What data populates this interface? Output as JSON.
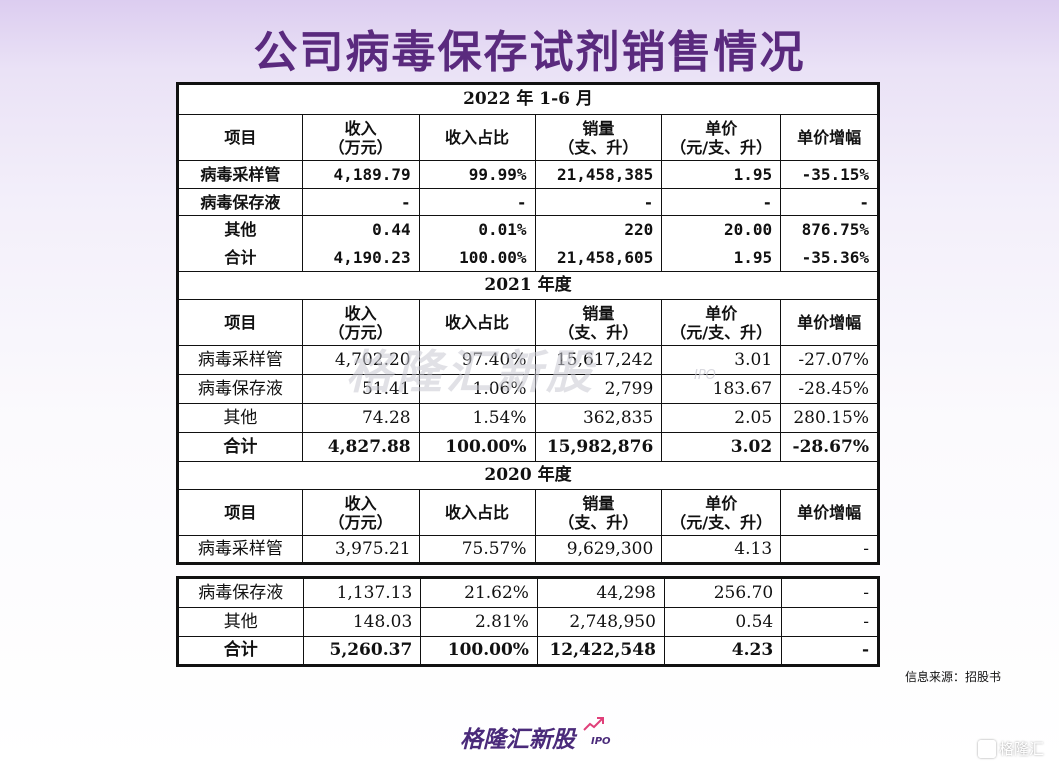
{
  "title": "公司病毒保存试剂销售情况",
  "source": "信息来源：招股书",
  "brand": {
    "name": "格隆汇新股",
    "suffix": "IPO"
  },
  "watermark": {
    "name": "格隆汇新股",
    "suffix": "IPO"
  },
  "corner_logo": "格隆汇",
  "columns": [
    "项目",
    "收入",
    "（万元）",
    "收入占比",
    "销量",
    "（支、升）",
    "单价",
    "（元/支、升）",
    "单价增幅"
  ],
  "sections": [
    {
      "period": "2022 年 1-6 月",
      "rows": [
        {
          "item": "病毒采样管",
          "revenue": "4,189.79",
          "share": "99.99%",
          "volume": "21,458,385",
          "price": "1.95",
          "growth": "-35.15%"
        },
        {
          "item": "病毒保存液",
          "revenue": "-",
          "share": "-",
          "volume": "-",
          "price": "-",
          "growth": "-"
        },
        {
          "item": "其他",
          "revenue": "0.44",
          "share": "0.01%",
          "volume": "220",
          "price": "20.00",
          "growth": "876.75%"
        },
        {
          "item": "合计",
          "revenue": "4,190.23",
          "share": "100.00%",
          "volume": "21,458,605",
          "price": "1.95",
          "growth": "-35.36%"
        }
      ]
    },
    {
      "period": "2021 年度",
      "rows": [
        {
          "item": "病毒采样管",
          "revenue": "4,702.20",
          "share": "97.40%",
          "volume": "15,617,242",
          "price": "3.01",
          "growth": "-27.07%"
        },
        {
          "item": "病毒保存液",
          "revenue": "51.41",
          "share": "1.06%",
          "volume": "2,799",
          "price": "183.67",
          "growth": "-28.45%"
        },
        {
          "item": "其他",
          "revenue": "74.28",
          "share": "1.54%",
          "volume": "362,835",
          "price": "2.05",
          "growth": "280.15%"
        },
        {
          "item": "合计",
          "revenue": "4,827.88",
          "share": "100.00%",
          "volume": "15,982,876",
          "price": "3.02",
          "growth": "-28.67%"
        }
      ]
    },
    {
      "period": "2020 年度",
      "rows": [
        {
          "item": "病毒采样管",
          "revenue": "3,975.21",
          "share": "75.57%",
          "volume": "9,629,300",
          "price": "4.13",
          "growth": "-"
        },
        {
          "item": "病毒保存液",
          "revenue": "1,137.13",
          "share": "21.62%",
          "volume": "44,298",
          "price": "256.70",
          "growth": "-"
        },
        {
          "item": "其他",
          "revenue": "148.03",
          "share": "2.81%",
          "volume": "2,748,950",
          "price": "0.54",
          "growth": "-"
        },
        {
          "item": "合计",
          "revenue": "5,260.37",
          "share": "100.00%",
          "volume": "12,422,548",
          "price": "4.23",
          "growth": "-"
        }
      ]
    }
  ]
}
